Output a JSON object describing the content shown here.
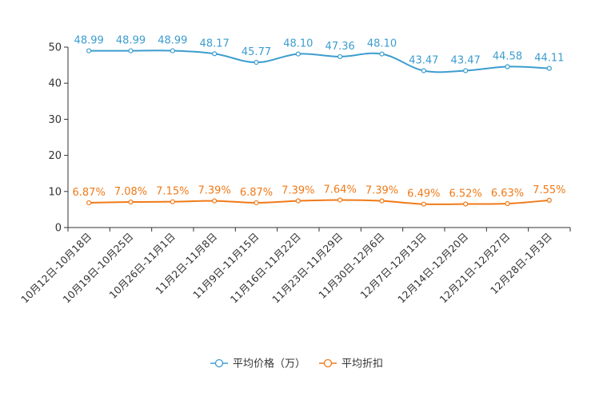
{
  "chart_data": {
    "type": "line",
    "title": "",
    "xlabel": "",
    "ylabel": "",
    "ylim": [
      0,
      50
    ],
    "yticks": [
      0,
      10,
      20,
      30,
      40,
      50
    ],
    "categories": [
      "10月12日-10月18日",
      "10月19日-10月25日",
      "10月26日-11月1日",
      "11月2日-11月8日",
      "11月9日-11月15日",
      "11月16日-11月22日",
      "11月23日-11月29日",
      "11月30日-12月6日",
      "12月7日-12月13日",
      "12月14日-12月20日",
      "12月21日-12月27日",
      "12月28日-1月3日"
    ],
    "series": [
      {
        "name": "平均价格（万）",
        "color": "#3c9dcf",
        "values": [
          48.99,
          48.99,
          48.99,
          48.17,
          45.77,
          48.1,
          47.36,
          48.1,
          43.47,
          43.47,
          44.58,
          44.11
        ],
        "labels": [
          "48.99",
          "48.99",
          "48.99",
          "48.17",
          "45.77",
          "48.10",
          "47.36",
          "48.10",
          "43.47",
          "43.47",
          "44.58",
          "44.11"
        ]
      },
      {
        "name": "平均折扣",
        "color": "#f07a18",
        "values": [
          6.87,
          7.08,
          7.15,
          7.39,
          6.87,
          7.39,
          7.64,
          7.39,
          6.49,
          6.52,
          6.63,
          7.55
        ],
        "labels": [
          "6.87%",
          "7.08%",
          "7.15%",
          "7.39%",
          "6.87%",
          "7.39%",
          "7.64%",
          "7.39%",
          "6.49%",
          "6.52%",
          "6.63%",
          "7.55%"
        ]
      }
    ],
    "legend_position": "bottom-center",
    "grid": false
  }
}
